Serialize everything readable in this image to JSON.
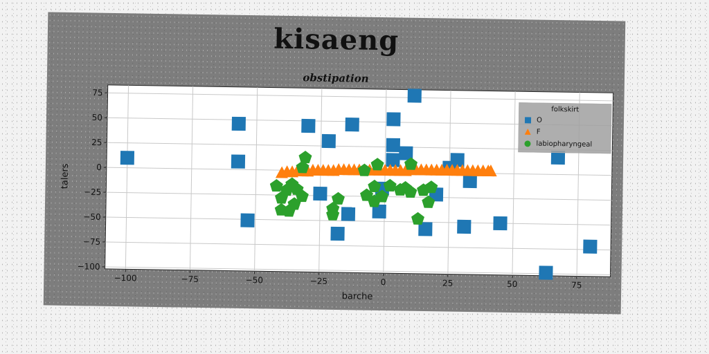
{
  "chart_data": {
    "type": "scatter",
    "title": "kisaeng",
    "subtitle": "obstipation",
    "xlabel": "barche",
    "ylabel": "talers",
    "xlim": [
      -108,
      88
    ],
    "ylim": [
      -102,
      83
    ],
    "xticks": [
      -100,
      -75,
      -50,
      -25,
      0,
      25,
      50,
      75
    ],
    "yticks": [
      -100,
      -75,
      -50,
      -25,
      0,
      25,
      50,
      75
    ],
    "xtick_labels": [
      "−100",
      "−75",
      "−50",
      "−25",
      "0",
      "25",
      "50",
      "75"
    ],
    "ytick_labels": [
      "−100",
      "−75",
      "−50",
      "−25",
      "0",
      "25",
      "50",
      "75"
    ],
    "grid": true,
    "legend": {
      "title": "folkskirt",
      "placement": "top-right"
    },
    "series": [
      {
        "name": "O",
        "color": "#1f77b4",
        "marker": "square",
        "points": [
          [
            -100,
            10
          ],
          [
            -57,
            46
          ],
          [
            -57,
            8
          ],
          [
            -53,
            -51
          ],
          [
            -30,
            45
          ],
          [
            -22,
            30
          ],
          [
            -13,
            47
          ],
          [
            -25,
            -23
          ],
          [
            -18,
            -63
          ],
          [
            -14,
            -43
          ],
          [
            3,
            53
          ],
          [
            11,
            77
          ],
          [
            3,
            27
          ],
          [
            8,
            19
          ],
          [
            3,
            12
          ],
          [
            -2,
            -40
          ],
          [
            16,
            -57
          ],
          [
            20,
            -22
          ],
          [
            28,
            13
          ],
          [
            31,
            -54
          ],
          [
            33,
            -8
          ],
          [
            45,
            -50
          ],
          [
            67,
            17
          ],
          [
            80,
            -72
          ],
          [
            63,
            -99
          ],
          [
            -1,
            -17
          ],
          [
            25,
            5
          ]
        ]
      },
      {
        "name": "F",
        "color": "#ff7f0e",
        "marker": "triangle",
        "points": [
          [
            -40,
            -3
          ],
          [
            -38,
            -2
          ],
          [
            -36,
            -2
          ],
          [
            -34,
            -1
          ],
          [
            -32,
            -1
          ],
          [
            -30,
            -1
          ],
          [
            -28,
            0
          ],
          [
            -26,
            0
          ],
          [
            -24,
            0
          ],
          [
            -22,
            0
          ],
          [
            -20,
            0
          ],
          [
            -18,
            1
          ],
          [
            -16,
            1
          ],
          [
            -14,
            1
          ],
          [
            -12,
            1
          ],
          [
            -10,
            1
          ],
          [
            -8,
            1
          ],
          [
            -6,
            1
          ],
          [
            -4,
            1
          ],
          [
            -2,
            1
          ],
          [
            0,
            1
          ],
          [
            2,
            1
          ],
          [
            4,
            1
          ],
          [
            6,
            1
          ],
          [
            8,
            1
          ],
          [
            10,
            2
          ],
          [
            12,
            2
          ],
          [
            14,
            2
          ],
          [
            16,
            2
          ],
          [
            18,
            2
          ],
          [
            20,
            2
          ],
          [
            22,
            2
          ],
          [
            24,
            2
          ],
          [
            26,
            2
          ],
          [
            28,
            2
          ],
          [
            30,
            2
          ],
          [
            32,
            2
          ],
          [
            34,
            2
          ],
          [
            36,
            2
          ],
          [
            38,
            2
          ],
          [
            40,
            2
          ],
          [
            41,
            2
          ]
        ]
      },
      {
        "name": "labiopharyngeal",
        "color": "#2ca02c",
        "marker": "pentagon",
        "points": [
          [
            -31,
            13
          ],
          [
            -32,
            3
          ],
          [
            -42,
            -16
          ],
          [
            -38,
            -20
          ],
          [
            -36,
            -14
          ],
          [
            -34,
            -19
          ],
          [
            -32,
            -26
          ],
          [
            -40,
            -28
          ],
          [
            -40,
            -40
          ],
          [
            -37,
            -41
          ],
          [
            -35,
            -34
          ],
          [
            -18,
            -28
          ],
          [
            -20,
            -38
          ],
          [
            -20,
            -44
          ],
          [
            -8,
            1
          ],
          [
            -3,
            7
          ],
          [
            -4,
            -15
          ],
          [
            -7,
            -24
          ],
          [
            -4,
            -30
          ],
          [
            -1,
            -25
          ],
          [
            2,
            -14
          ],
          [
            6,
            -18
          ],
          [
            8,
            -16
          ],
          [
            10,
            8
          ],
          [
            10,
            -20
          ],
          [
            13,
            -47
          ],
          [
            15,
            -18
          ],
          [
            17,
            -30
          ],
          [
            18,
            -15
          ]
        ]
      }
    ]
  }
}
